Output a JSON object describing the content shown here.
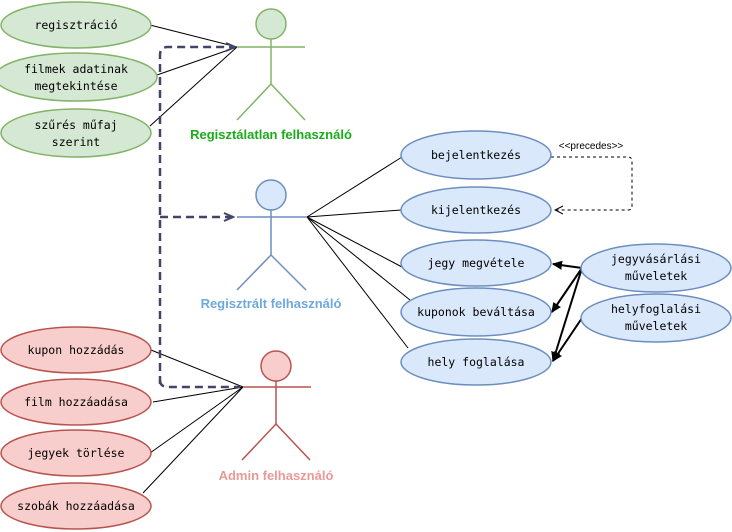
{
  "actors": {
    "unregistered": {
      "label": "Regisztálatlan felhasználó",
      "color": "#82b366",
      "fill": "#d5e8d4",
      "text_color": "#1aab1a"
    },
    "registered": {
      "label": "Regisztrált felhasználó",
      "color": "#6c8ebf",
      "fill": "#dae8fc",
      "text_color": "#6fa8dc"
    },
    "admin": {
      "label": "Admin felhasználó",
      "color": "#b85450",
      "fill": "#f8cecc",
      "text_color": "#ea9999"
    }
  },
  "usecases": {
    "registration": {
      "lines": [
        "regisztráció"
      ]
    },
    "view_films": {
      "lines": [
        "filmek adatinak",
        "megtekintése"
      ]
    },
    "filter_genre": {
      "lines": [
        "szűrés műfaj",
        "szerint"
      ]
    },
    "login": {
      "lines": [
        "bejelentkezés"
      ]
    },
    "logout": {
      "lines": [
        "kijelentkezés"
      ]
    },
    "buy_ticket": {
      "lines": [
        "jegy megvétele"
      ]
    },
    "redeem_coupon": {
      "lines": [
        "kuponok beváltása"
      ]
    },
    "book_seat": {
      "lines": [
        "hely foglalása"
      ]
    },
    "ticket_ops": {
      "lines": [
        "jegyvásárlási",
        "műveletek"
      ]
    },
    "seat_ops": {
      "lines": [
        "helyfoglalási",
        "műveletek"
      ]
    },
    "add_coupon": {
      "lines": [
        "kupon hozzádás"
      ]
    },
    "add_film": {
      "lines": [
        "film hozzáadása"
      ]
    },
    "delete_tickets": {
      "lines": [
        "jegyek törlése"
      ]
    },
    "add_rooms": {
      "lines": [
        "szobák hozzáadása"
      ]
    }
  },
  "relations": {
    "precedes_label": "<<precedes>>"
  }
}
